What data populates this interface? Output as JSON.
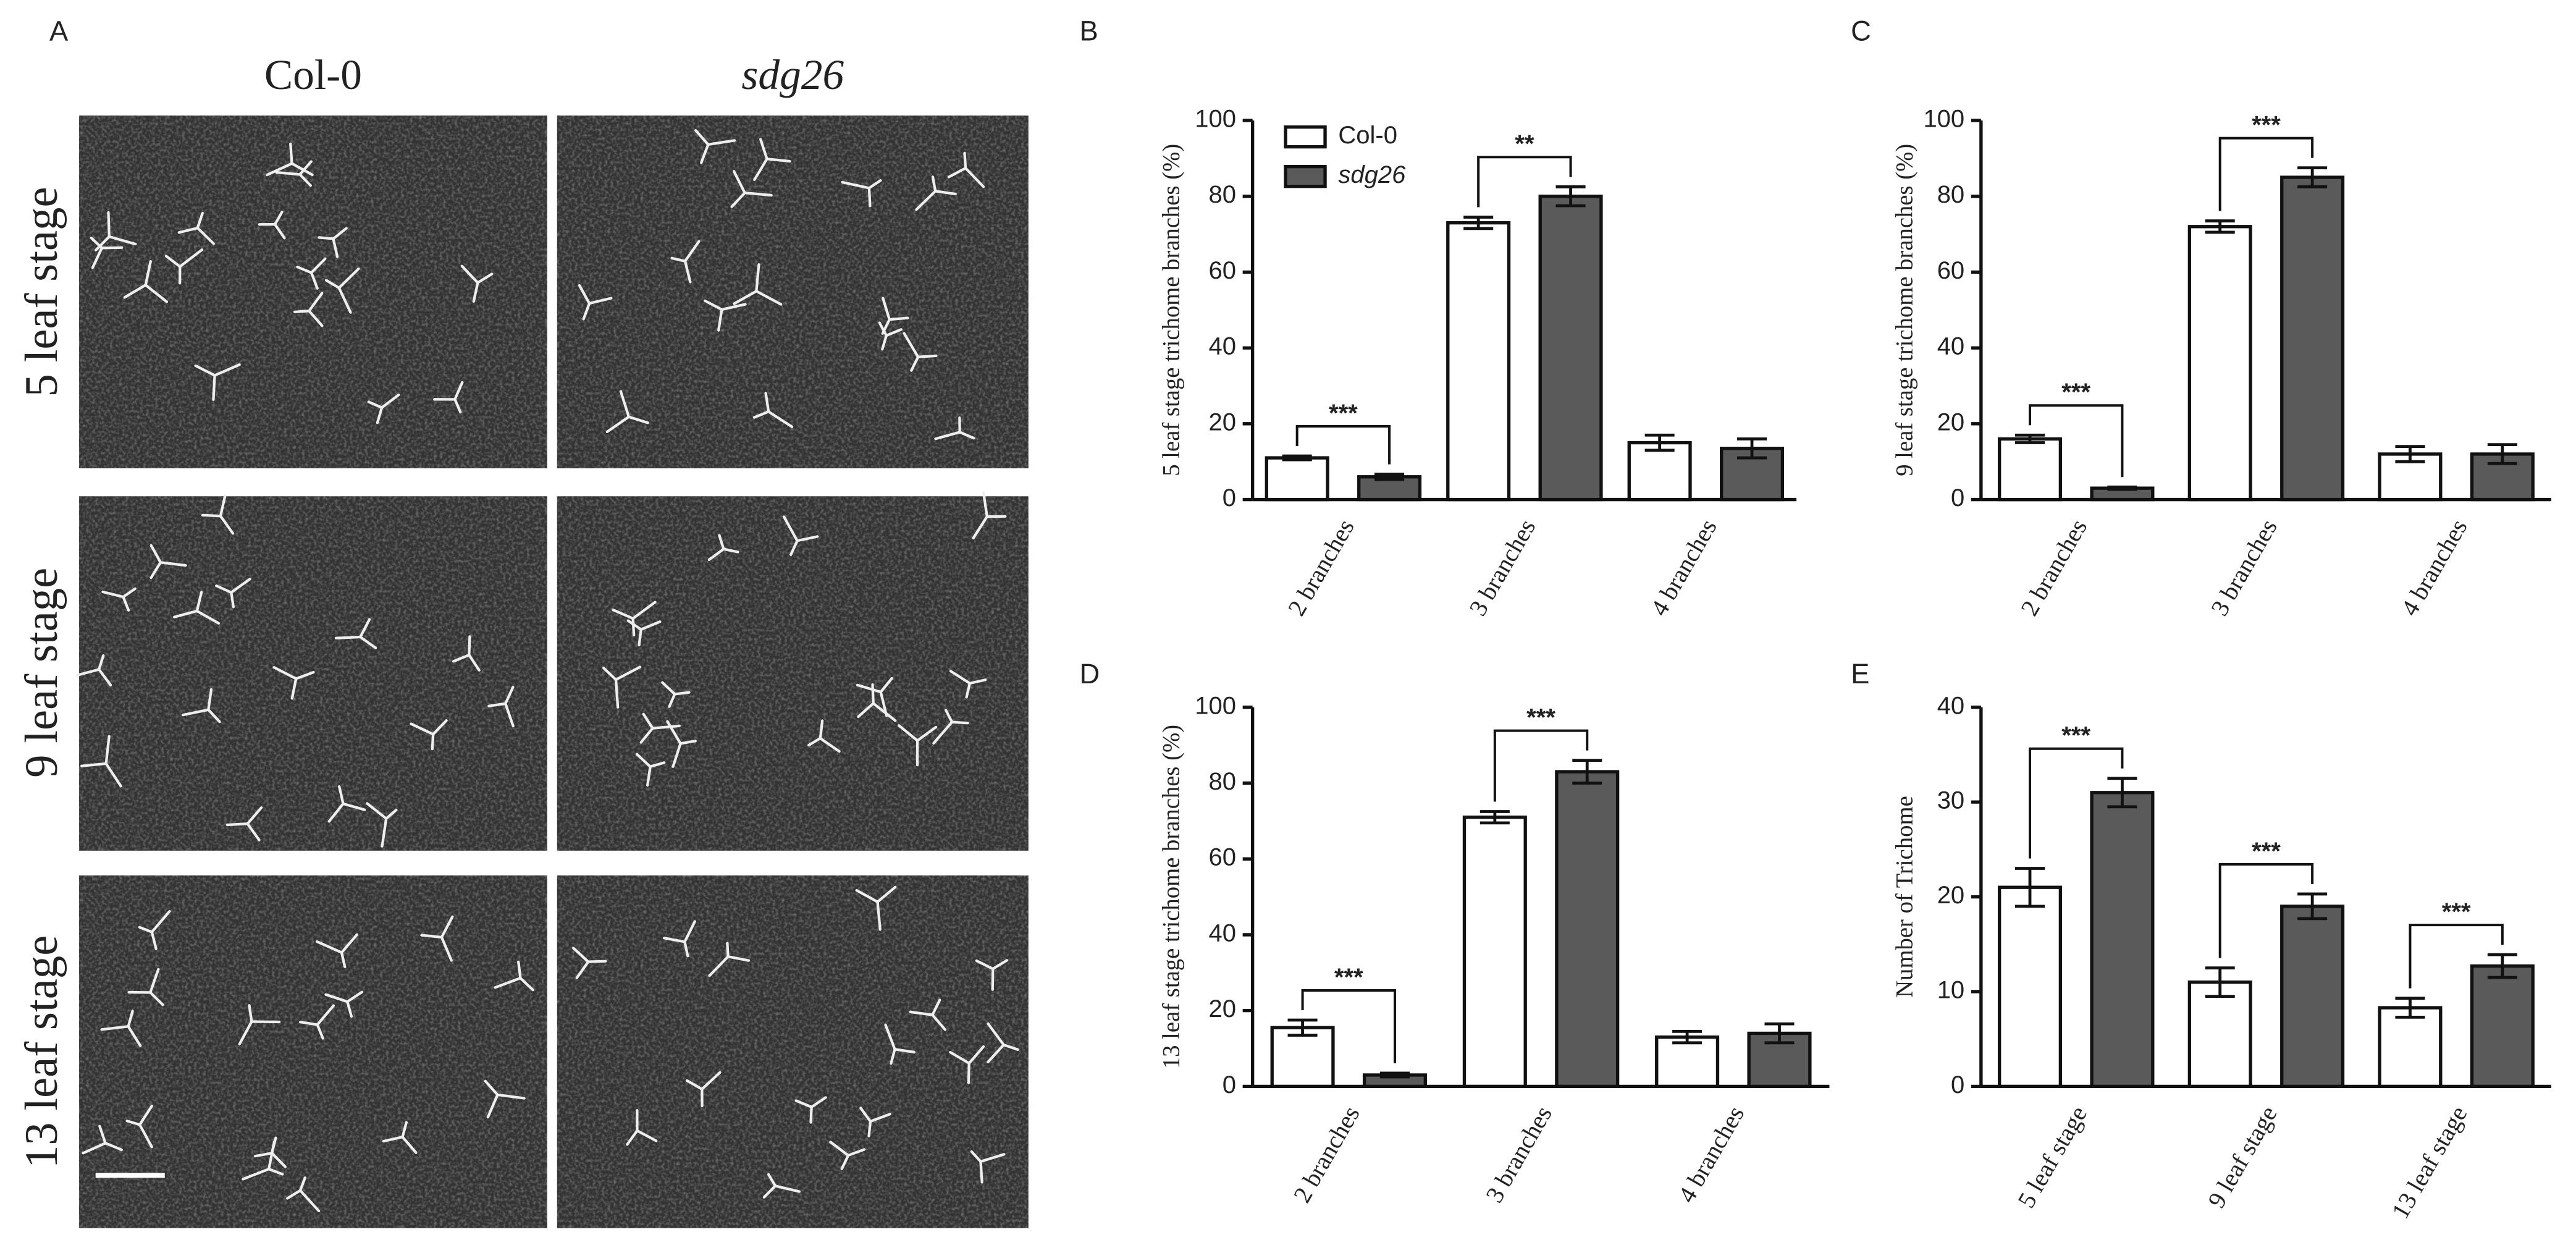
{
  "panel_a": {
    "label": "A",
    "columns": [
      "Col-0",
      "sdg26"
    ],
    "rows": [
      "5 leaf stage",
      "9 leaf stage",
      "13 leaf stage"
    ]
  },
  "chart_data": [
    {
      "type": "bar",
      "panel": "B",
      "y_label": "5 leaf stage trichome branches (%)",
      "categories": [
        "2 branches",
        "3 branches",
        "4 branches"
      ],
      "series": [
        {
          "name": "Col-0",
          "color": "#ffffff",
          "values": [
            11,
            73,
            15
          ],
          "errors": [
            0.5,
            1.5,
            2
          ]
        },
        {
          "name": "sdg26",
          "color": "#5a5a5a",
          "values": [
            6,
            80,
            13.5
          ],
          "errors": [
            0.7,
            2.5,
            2.5
          ]
        }
      ],
      "annotations": [
        "***",
        "**",
        null
      ],
      "ylim": [
        0,
        100
      ],
      "yticks": [
        0,
        20,
        40,
        60,
        80,
        100
      ],
      "legend": "upper left"
    },
    {
      "type": "bar",
      "panel": "C",
      "y_label": "9 leaf stage trichome branches (%)",
      "categories": [
        "2 branches",
        "3 branches",
        "4 branches"
      ],
      "series": [
        {
          "color": "#ffffff",
          "values": [
            16,
            72,
            12
          ],
          "errors": [
            1,
            1.5,
            2
          ]
        },
        {
          "color": "#5a5a5a",
          "values": [
            3,
            85,
            12
          ],
          "errors": [
            0.3,
            2.5,
            2.5
          ]
        }
      ],
      "annotations": [
        "***",
        "***",
        null
      ],
      "ylim": [
        0,
        100
      ],
      "yticks": [
        0,
        20,
        40,
        60,
        80,
        100
      ]
    },
    {
      "type": "bar",
      "panel": "D",
      "y_label": "13 leaf stage trichome branches (%)",
      "categories": [
        "2 branches",
        "3 branches",
        "4 branches"
      ],
      "series": [
        {
          "color": "#ffffff",
          "values": [
            15.5,
            71,
            13
          ],
          "errors": [
            2,
            1.5,
            1.5
          ]
        },
        {
          "color": "#5a5a5a",
          "values": [
            3,
            83,
            14
          ],
          "errors": [
            0.5,
            3,
            2.5
          ]
        }
      ],
      "annotations": [
        "***",
        "***",
        null
      ],
      "ylim": [
        0,
        100
      ],
      "yticks": [
        0,
        20,
        40,
        60,
        80,
        100
      ]
    },
    {
      "type": "bar",
      "panel": "E",
      "y_label": "Number of Trichome",
      "categories": [
        "5 leaf stage",
        "9 leaf stage",
        "13 leaf stage"
      ],
      "series": [
        {
          "color": "#ffffff",
          "values": [
            21,
            11,
            8.3
          ],
          "errors": [
            2,
            1.5,
            1
          ]
        },
        {
          "color": "#5a5a5a",
          "values": [
            31,
            19,
            12.7
          ],
          "errors": [
            1.5,
            1.3,
            1.2
          ]
        }
      ],
      "annotations": [
        "***",
        "***",
        "***"
      ],
      "ylim": [
        0,
        40
      ],
      "yticks": [
        0,
        10,
        20,
        30,
        40
      ]
    }
  ]
}
